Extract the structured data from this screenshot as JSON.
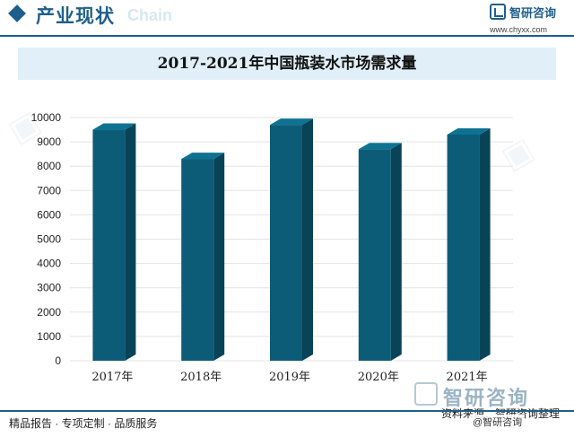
{
  "header": {
    "section_title": "产业现状",
    "section_sub": "Chain",
    "logo_name": "智研咨询",
    "logo_url": "www.chyxx.com"
  },
  "chart_data": {
    "type": "bar",
    "title": "2017-2021年中国瓶装水市场需求量",
    "xlabel": "",
    "ylabel": "",
    "categories": [
      "2017年",
      "2018年",
      "2019年",
      "2020年",
      "2021年"
    ],
    "values": [
      9500,
      8300,
      9700,
      8700,
      9300
    ],
    "ylim": [
      0,
      10000
    ],
    "yticks": [
      0,
      1000,
      2000,
      3000,
      4000,
      5000,
      6000,
      7000,
      8000,
      9000,
      10000
    ],
    "grid": true,
    "colors": {
      "bar_front": "#0c5c78",
      "bar_side": "#084357",
      "bar_top": "#0e7393",
      "grid": "#e3e3e3"
    }
  },
  "footer": {
    "left": "精品报告 · 专项定制 · 品质服务",
    "source": "资料来源：智研咨询整理",
    "brand": "智研咨询",
    "weibo": "@智研咨询"
  }
}
